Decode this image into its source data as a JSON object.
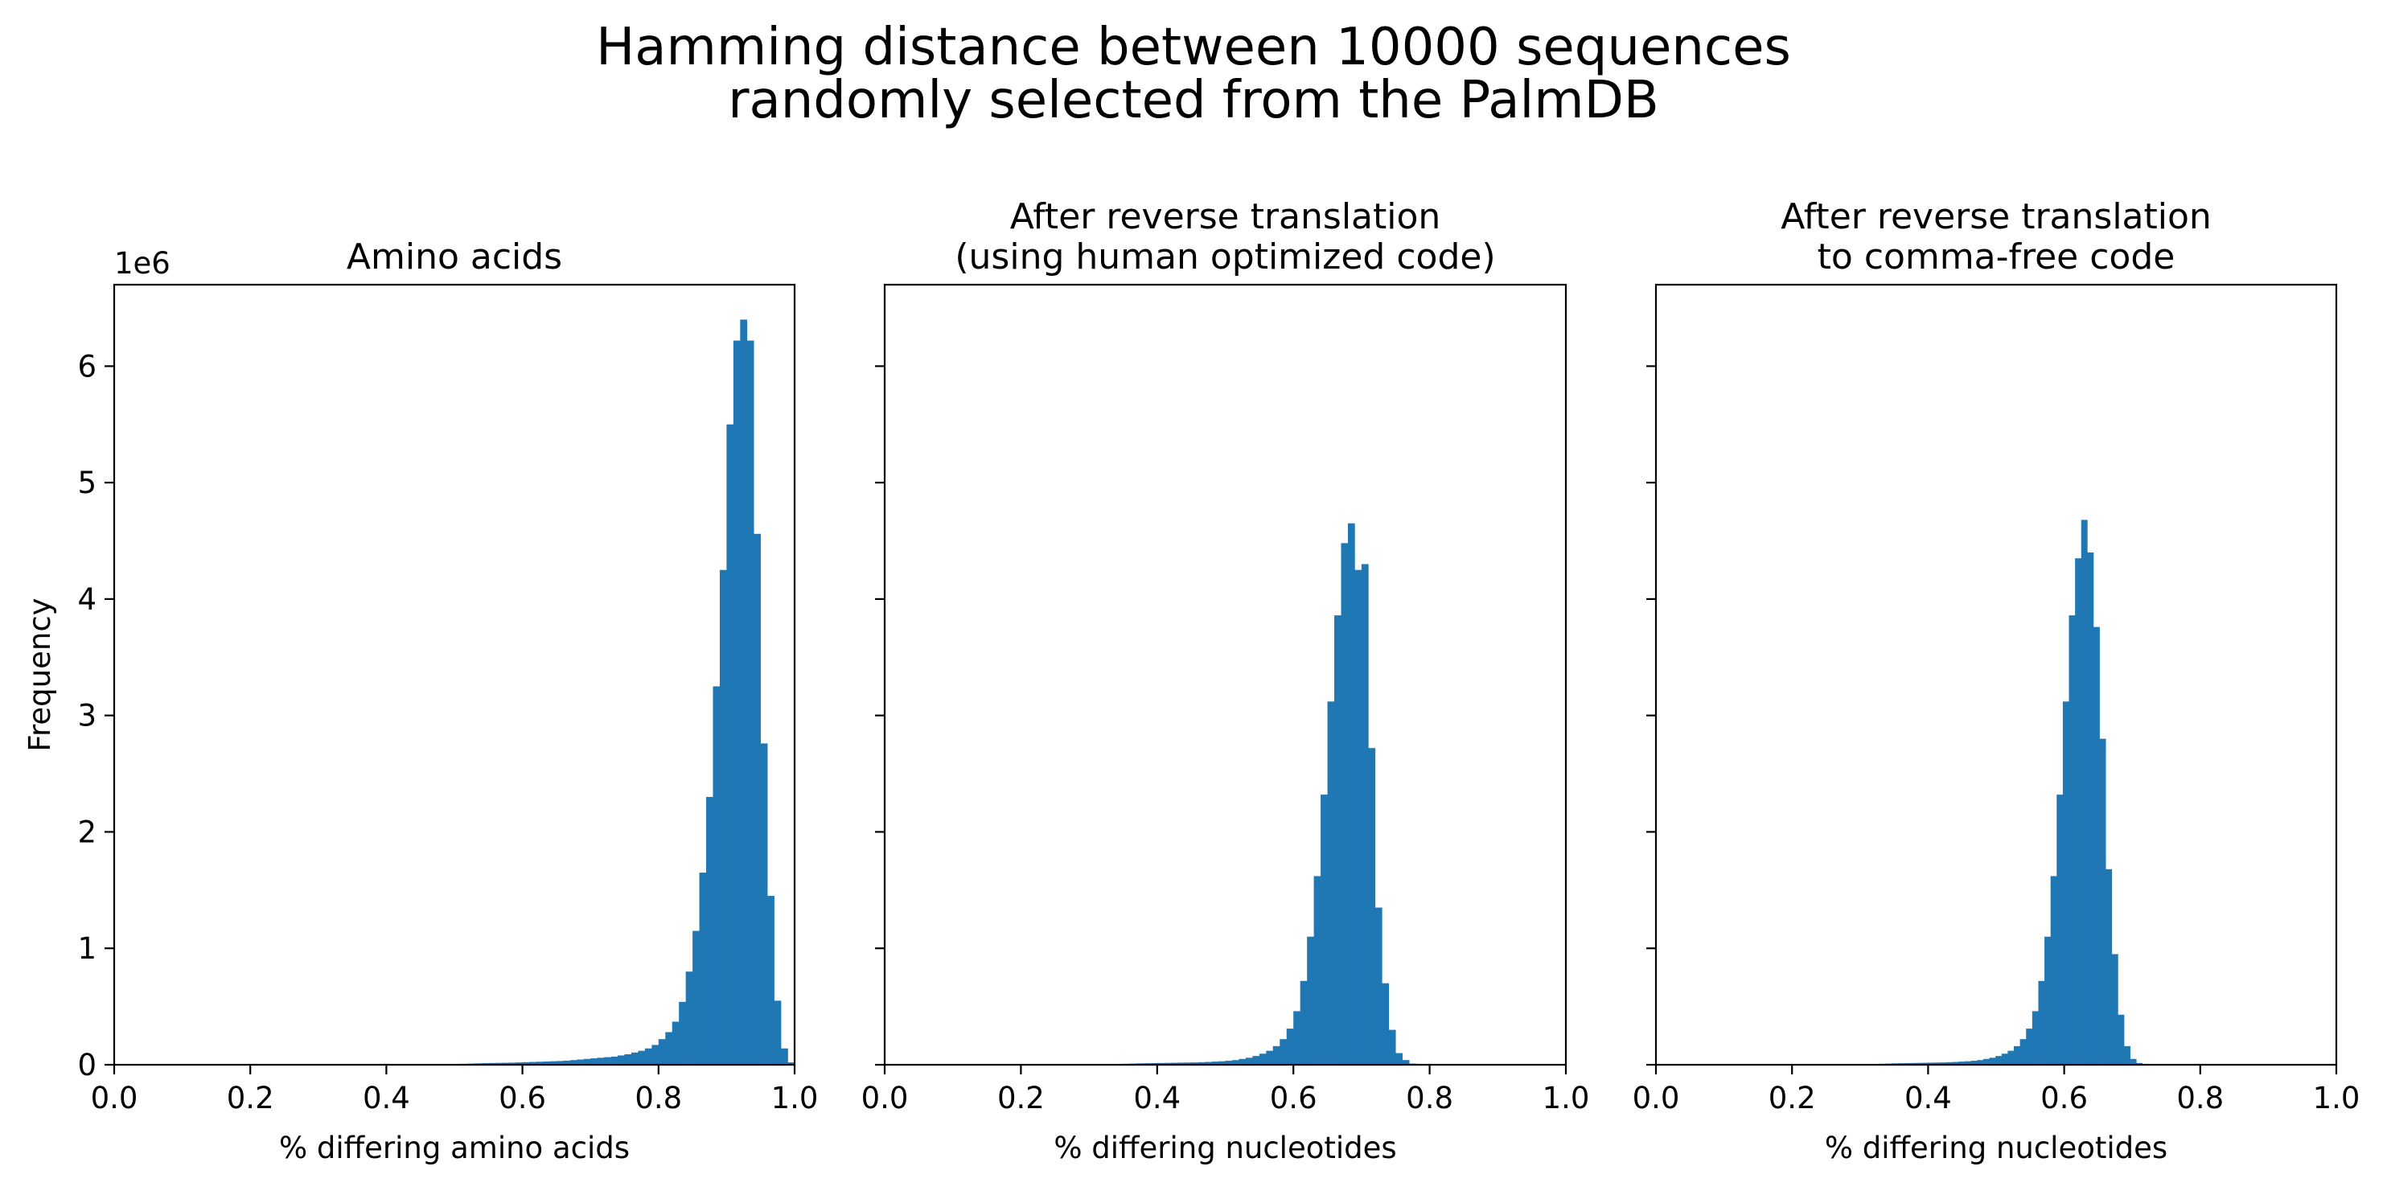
{
  "figure": {
    "suptitle_line1": "Hamming distance between 10000 sequences",
    "suptitle_line2": "randomly selected from the PalmDB"
  },
  "chart_data": [
    {
      "type": "bar",
      "title": "Amino acids",
      "xlabel": "% differing amino acids",
      "ylabel": "Frequency",
      "y_offset_label": "1e6",
      "xlim": [
        0.0,
        1.0
      ],
      "ylim": [
        0,
        6.7
      ],
      "y_unit": 1000000,
      "xticks": [
        "0.0",
        "0.2",
        "0.4",
        "0.6",
        "0.8",
        "1.0"
      ],
      "yticks": [
        "0",
        "1",
        "2",
        "3",
        "4",
        "5",
        "6"
      ],
      "grid": false,
      "color": "#1f77b4",
      "bin_start": 0.5,
      "bin_width": 0.01,
      "values": [
        0.005,
        0.008,
        0.01,
        0.012,
        0.014,
        0.015,
        0.016,
        0.017,
        0.018,
        0.02,
        0.022,
        0.024,
        0.026,
        0.028,
        0.03,
        0.032,
        0.035,
        0.04,
        0.045,
        0.05,
        0.055,
        0.06,
        0.065,
        0.07,
        0.08,
        0.09,
        0.105,
        0.12,
        0.14,
        0.17,
        0.22,
        0.28,
        0.37,
        0.54,
        0.8,
        1.15,
        1.65,
        2.3,
        3.25,
        4.25,
        5.5,
        6.22,
        6.4,
        6.22,
        4.56,
        2.76,
        1.45,
        0.55,
        0.14,
        0.02
      ]
    },
    {
      "type": "bar",
      "title": "After reverse translation\n(using human optimized code)",
      "xlabel": "% differing nucleotides",
      "ylabel": "",
      "xlim": [
        0.0,
        1.0
      ],
      "ylim": [
        0,
        6.7
      ],
      "y_unit": 1000000,
      "xticks": [
        "0.0",
        "0.2",
        "0.4",
        "0.6",
        "0.8",
        "1.0"
      ],
      "yticks": [],
      "grid": false,
      "color": "#1f77b4",
      "bin_start": 0.33,
      "bin_width": 0.01,
      "values": [
        0.004,
        0.006,
        0.008,
        0.01,
        0.012,
        0.013,
        0.014,
        0.015,
        0.016,
        0.017,
        0.018,
        0.019,
        0.02,
        0.022,
        0.024,
        0.027,
        0.03,
        0.034,
        0.04,
        0.05,
        0.06,
        0.075,
        0.095,
        0.12,
        0.16,
        0.22,
        0.31,
        0.46,
        0.72,
        1.1,
        1.62,
        2.32,
        3.12,
        3.86,
        4.48,
        4.65,
        4.25,
        4.3,
        2.72,
        1.35,
        0.7,
        0.3,
        0.1,
        0.04,
        0.01
      ]
    },
    {
      "type": "bar",
      "title": "After reverse translation\nto comma-free code",
      "xlabel": "% differing nucleotides",
      "ylabel": "",
      "xlim": [
        0.0,
        1.0
      ],
      "ylim": [
        0,
        6.7
      ],
      "y_unit": 1000000,
      "xticks": [
        "0.0",
        "0.2",
        "0.4",
        "0.6",
        "0.8",
        "1.0"
      ],
      "yticks": [],
      "grid": false,
      "color": "#1f77b4",
      "bin_start": 0.31,
      "bin_width": 0.009,
      "values": [
        0.004,
        0.006,
        0.008,
        0.01,
        0.012,
        0.013,
        0.014,
        0.015,
        0.016,
        0.017,
        0.018,
        0.019,
        0.02,
        0.022,
        0.024,
        0.027,
        0.03,
        0.034,
        0.04,
        0.05,
        0.06,
        0.075,
        0.095,
        0.12,
        0.16,
        0.22,
        0.31,
        0.46,
        0.72,
        1.1,
        1.62,
        2.32,
        3.12,
        3.86,
        4.35,
        4.68,
        4.4,
        3.76,
        2.8,
        1.68,
        0.95,
        0.43,
        0.16,
        0.05,
        0.015
      ]
    }
  ]
}
